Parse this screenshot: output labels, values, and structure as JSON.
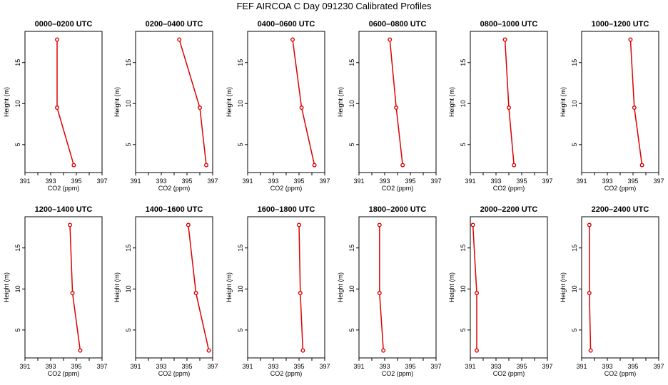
{
  "title": "FEF AIRCOA C  Day 091230  Calibrated Profiles",
  "chart_data": {
    "type": "line",
    "x_ticks": [
      391,
      393,
      395,
      397
    ],
    "y_ticks": [
      5,
      10,
      15
    ],
    "xlim": [
      391,
      397
    ],
    "ylim": [
      1.6,
      18.8
    ],
    "xlabel": "CO2 (ppm)",
    "ylabel": "Height (m)",
    "series_color": "#dd0000",
    "panels": [
      {
        "title": "0000–0200 UTC",
        "points": [
          {
            "x": 393.5,
            "y": 17.8
          },
          {
            "x": 393.5,
            "y": 9.5
          },
          {
            "x": 394.8,
            "y": 2.5
          }
        ]
      },
      {
        "title": "0200–0400 UTC",
        "points": [
          {
            "x": 394.4,
            "y": 17.8
          },
          {
            "x": 396.0,
            "y": 9.5
          },
          {
            "x": 396.5,
            "y": 2.5
          }
        ]
      },
      {
        "title": "0400–0600 UTC",
        "points": [
          {
            "x": 394.5,
            "y": 17.8
          },
          {
            "x": 395.2,
            "y": 9.5
          },
          {
            "x": 396.2,
            "y": 2.5
          }
        ]
      },
      {
        "title": "0600–0800 UTC",
        "points": [
          {
            "x": 393.4,
            "y": 17.8
          },
          {
            "x": 393.9,
            "y": 9.5
          },
          {
            "x": 394.4,
            "y": 2.5
          }
        ]
      },
      {
        "title": "0800–1000 UTC",
        "points": [
          {
            "x": 393.7,
            "y": 17.8
          },
          {
            "x": 394.0,
            "y": 9.5
          },
          {
            "x": 394.4,
            "y": 2.5
          }
        ]
      },
      {
        "title": "1000–1200 UTC",
        "points": [
          {
            "x": 394.8,
            "y": 17.8
          },
          {
            "x": 395.1,
            "y": 9.5
          },
          {
            "x": 395.7,
            "y": 2.5
          }
        ]
      },
      {
        "title": "1200–1400 UTC",
        "points": [
          {
            "x": 394.5,
            "y": 17.8
          },
          {
            "x": 394.7,
            "y": 9.5
          },
          {
            "x": 395.3,
            "y": 2.5
          }
        ]
      },
      {
        "title": "1400–1600 UTC",
        "points": [
          {
            "x": 395.1,
            "y": 17.8
          },
          {
            "x": 395.7,
            "y": 9.5
          },
          {
            "x": 396.7,
            "y": 2.5
          }
        ]
      },
      {
        "title": "1600–1800 UTC",
        "points": [
          {
            "x": 395.0,
            "y": 17.8
          },
          {
            "x": 395.1,
            "y": 9.5
          },
          {
            "x": 395.3,
            "y": 2.5
          }
        ]
      },
      {
        "title": "1800–2000 UTC",
        "points": [
          {
            "x": 392.6,
            "y": 17.8
          },
          {
            "x": 392.6,
            "y": 9.5
          },
          {
            "x": 392.9,
            "y": 2.5
          }
        ]
      },
      {
        "title": "2000–2200 UTC",
        "points": [
          {
            "x": 391.2,
            "y": 17.8
          },
          {
            "x": 391.5,
            "y": 9.5
          },
          {
            "x": 391.5,
            "y": 2.5
          }
        ]
      },
      {
        "title": "2200–2400 UTC",
        "points": [
          {
            "x": 391.6,
            "y": 17.8
          },
          {
            "x": 391.6,
            "y": 9.5
          },
          {
            "x": 391.7,
            "y": 2.5
          }
        ]
      }
    ]
  }
}
